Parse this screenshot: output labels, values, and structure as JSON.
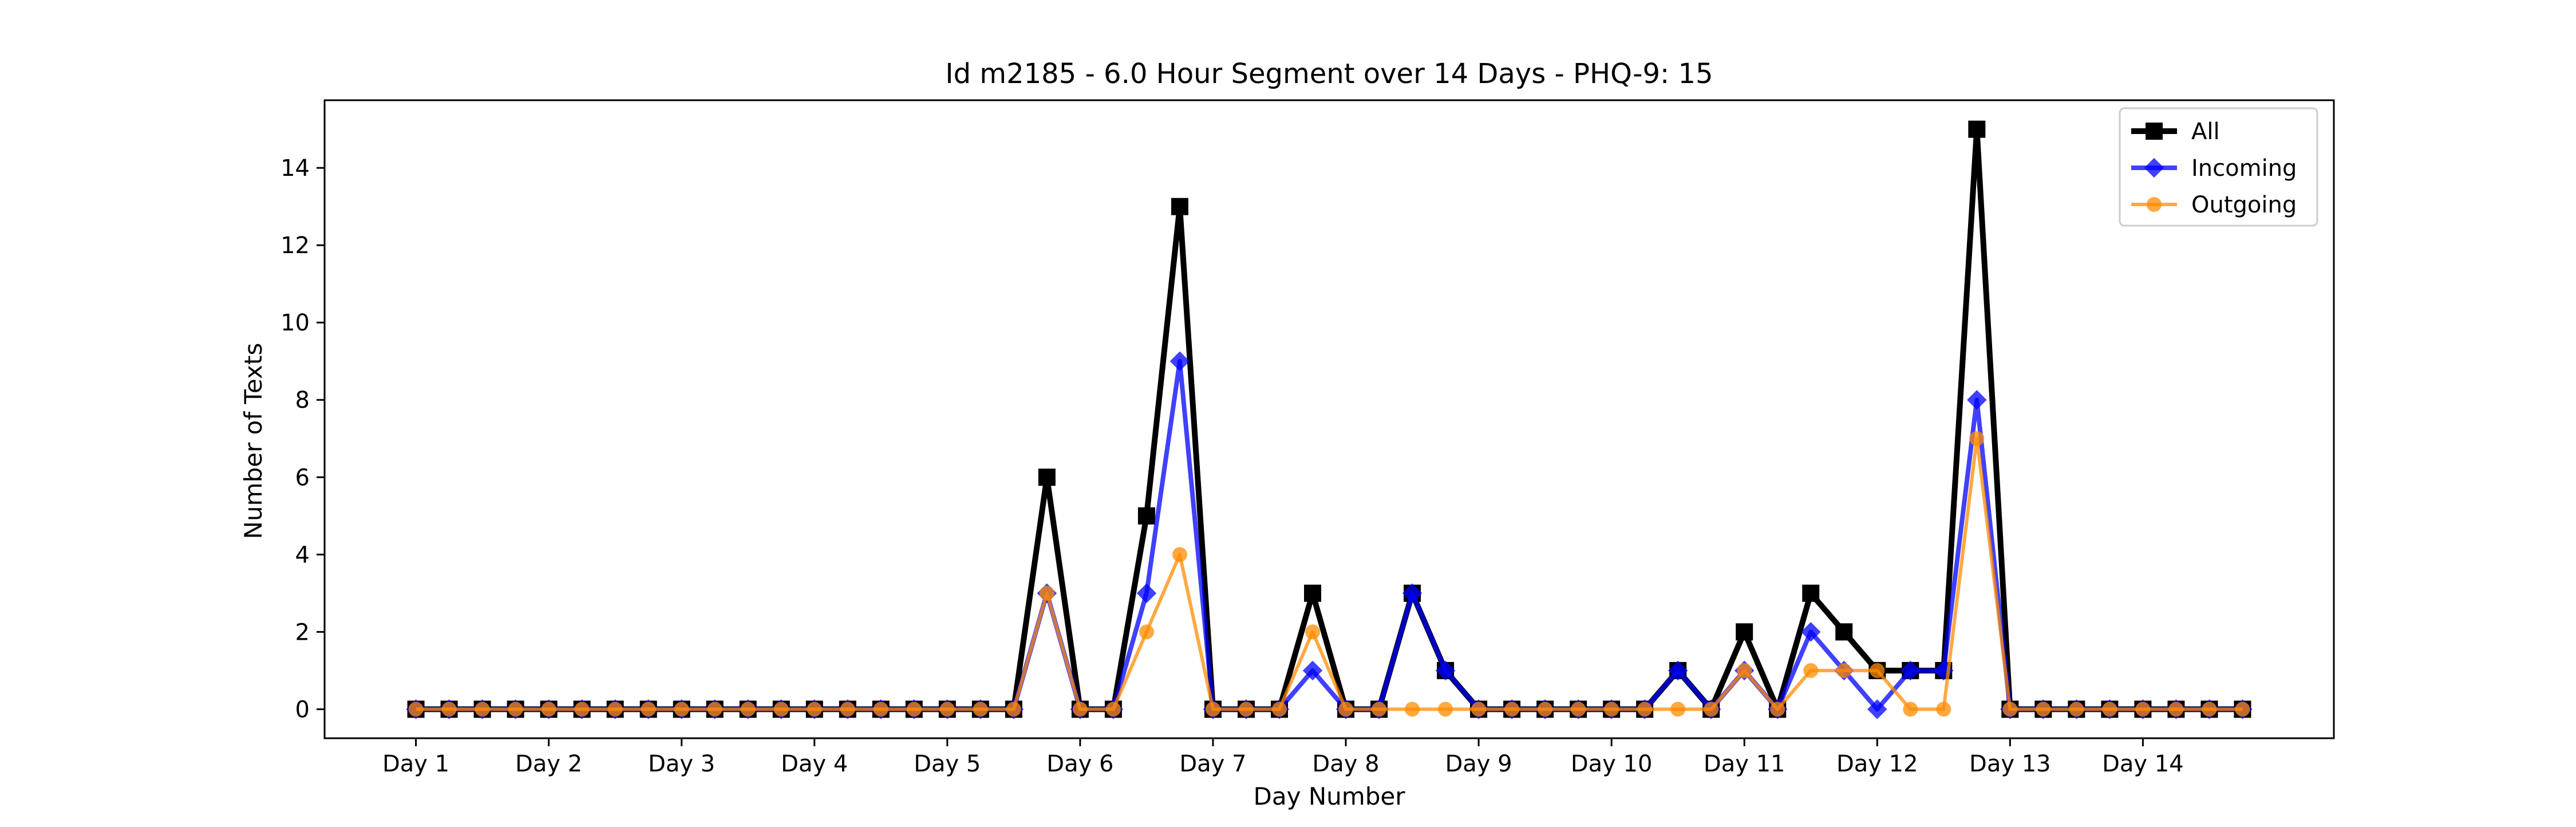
{
  "chart_data": {
    "type": "line",
    "title": "Id m2185 - 6.0 Hour Segment over 14 Days - PHQ-9: 15",
    "xlabel": "Day Number",
    "ylabel": "Number of Texts",
    "xticks": [
      "Day 1",
      "Day 2",
      "Day 3",
      "Day 4",
      "Day 5",
      "Day 6",
      "Day 7",
      "Day 8",
      "Day 9",
      "Day 10",
      "Day 11",
      "Day 12",
      "Day 13",
      "Day 14"
    ],
    "yticks": [
      0,
      2,
      4,
      6,
      8,
      10,
      12,
      14
    ],
    "ylim": [
      -0.75,
      15.75
    ],
    "xlim": [
      -2.75,
      57.75
    ],
    "grid": false,
    "legend_position": "top-right",
    "segments_per_day": 4,
    "series": [
      {
        "name": "All",
        "color": "#000000",
        "marker": "square",
        "values": [
          0,
          0,
          0,
          0,
          0,
          0,
          0,
          0,
          0,
          0,
          0,
          0,
          0,
          0,
          0,
          0,
          0,
          0,
          0,
          6,
          0,
          0,
          5,
          13,
          0,
          0,
          0,
          3,
          0,
          0,
          3,
          1,
          0,
          0,
          0,
          0,
          0,
          0,
          1,
          0,
          2,
          0,
          3,
          2,
          1,
          1,
          1,
          15,
          0,
          0,
          0,
          0,
          0,
          0,
          0,
          0
        ]
      },
      {
        "name": "Incoming",
        "color": "#0000ff",
        "marker": "diamond",
        "values": [
          0,
          0,
          0,
          0,
          0,
          0,
          0,
          0,
          0,
          0,
          0,
          0,
          0,
          0,
          0,
          0,
          0,
          0,
          0,
          3,
          0,
          0,
          3,
          9,
          0,
          0,
          0,
          1,
          0,
          0,
          3,
          1,
          0,
          0,
          0,
          0,
          0,
          0,
          1,
          0,
          1,
          0,
          2,
          1,
          0,
          1,
          1,
          8,
          0,
          0,
          0,
          0,
          0,
          0,
          0,
          0
        ]
      },
      {
        "name": "Outgoing",
        "color": "#ff8c00",
        "marker": "circle",
        "values": [
          0,
          0,
          0,
          0,
          0,
          0,
          0,
          0,
          0,
          0,
          0,
          0,
          0,
          0,
          0,
          0,
          0,
          0,
          0,
          3,
          0,
          0,
          2,
          4,
          0,
          0,
          0,
          2,
          0,
          0,
          0,
          0,
          0,
          0,
          0,
          0,
          0,
          0,
          0,
          0,
          1,
          0,
          1,
          1,
          1,
          0,
          0,
          7,
          0,
          0,
          0,
          0,
          0,
          0,
          0,
          0
        ]
      }
    ]
  }
}
